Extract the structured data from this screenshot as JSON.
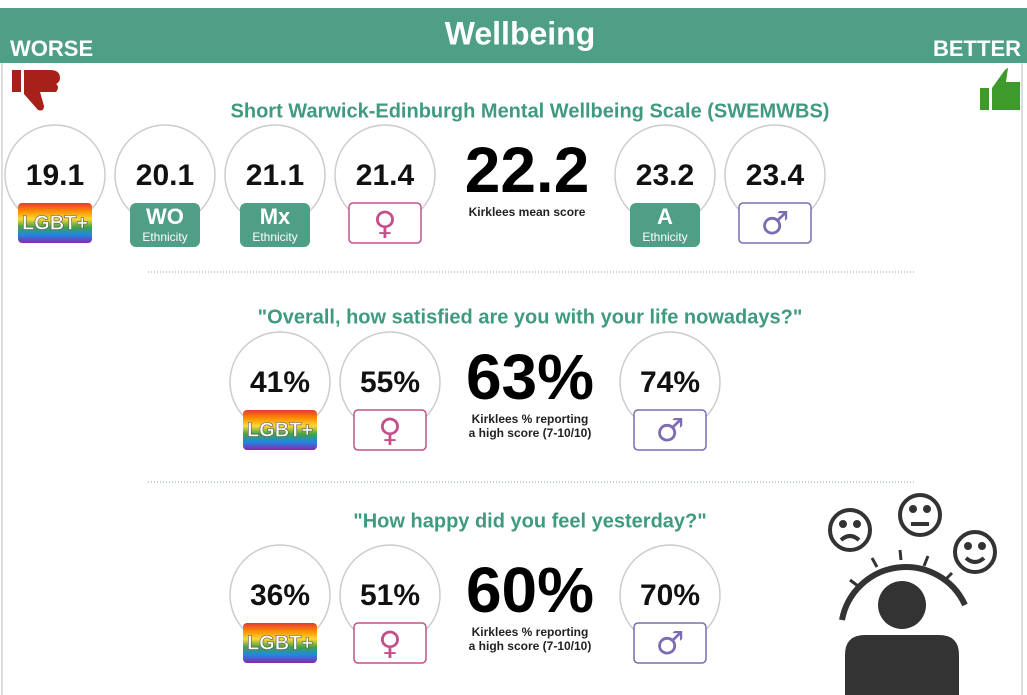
{
  "header": {
    "title": "Wellbeing",
    "left": "WORSE",
    "right": "BETTER"
  },
  "sections": [
    {
      "title": "Short Warwick-Edinburgh Mental Wellbeing Scale (SWEMWBS)",
      "items": [
        {
          "value": "19.1",
          "badge": "LGBT+"
        },
        {
          "value": "20.1",
          "badge": "WO",
          "sub": "Ethnicity"
        },
        {
          "value": "21.1",
          "badge": "Mx",
          "sub": "Ethnicity"
        },
        {
          "value": "21.4",
          "badge": "♀",
          "color": "#c4508a"
        },
        {
          "value": "23.2",
          "badge": "A",
          "sub": "Ethnicity"
        },
        {
          "value": "23.4",
          "badge": "♂",
          "color": "#7c6cb4"
        }
      ],
      "mean": {
        "value": "22.2",
        "caption": [
          "Kirklees mean score"
        ]
      }
    },
    {
      "title": "\"Overall, how satisfied are you with your life nowadays?\"",
      "items": [
        {
          "value": "41%",
          "badge": "LGBT+"
        },
        {
          "value": "55%",
          "badge": "♀",
          "color": "#c4508a"
        },
        {
          "value": "74%",
          "badge": "♂",
          "color": "#7c6cb4"
        }
      ],
      "mean": {
        "value": "63%",
        "caption": [
          "Kirklees % reporting",
          "a high score (7-10/10)"
        ]
      }
    },
    {
      "title": "\"How happy did you feel yesterday?\"",
      "items": [
        {
          "value": "36%",
          "badge": "LGBT+"
        },
        {
          "value": "51%",
          "badge": "♀",
          "color": "#c4508a"
        },
        {
          "value": "70%",
          "badge": "♂",
          "color": "#7c6cb4"
        }
      ],
      "mean": {
        "value": "60%",
        "caption": [
          "Kirklees % reporting",
          "a high score (7-10/10)"
        ]
      }
    }
  ]
}
